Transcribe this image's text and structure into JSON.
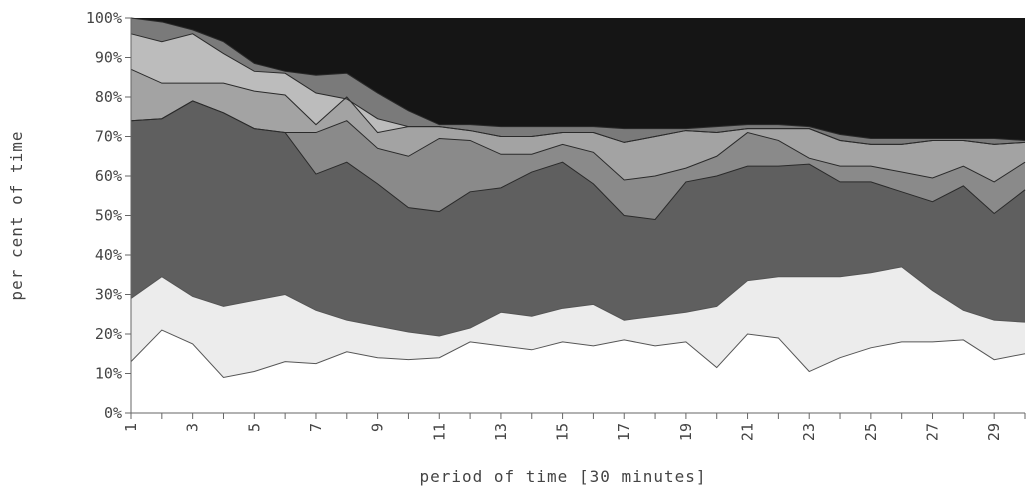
{
  "chart_data": {
    "type": "area",
    "stacked": true,
    "title": "",
    "xlabel": "period of time [30 minutes]",
    "ylabel": "per cent of time",
    "xlim": [
      1,
      30
    ],
    "ylim": [
      0,
      100
    ],
    "x_ticks": [
      "1",
      "3",
      "5",
      "7",
      "9",
      "11",
      "13",
      "15",
      "17",
      "19",
      "21",
      "23",
      "25",
      "27",
      "29"
    ],
    "y_ticks": [
      "0%",
      "10%",
      "20%",
      "30%",
      "40%",
      "50%",
      "60%",
      "70%",
      "80%",
      "90%",
      "100%"
    ],
    "x": [
      1,
      2,
      3,
      4,
      5,
      6,
      7,
      8,
      9,
      10,
      11,
      12,
      13,
      14,
      15,
      16,
      17,
      18,
      19,
      20,
      21,
      22,
      23,
      24,
      25,
      26,
      27,
      28,
      29,
      30
    ],
    "cumulative_boundaries": [
      [
        13,
        21,
        17.5,
        9,
        10.5,
        13,
        12.5,
        15.5,
        14,
        13.5,
        14,
        18,
        17,
        16,
        18,
        17,
        18.5,
        17,
        18,
        11.5,
        20,
        19,
        10.5,
        14,
        16.5,
        18,
        18,
        18.5,
        13.5,
        15
      ],
      [
        29,
        34.5,
        29.5,
        27,
        28.5,
        30,
        26,
        23.5,
        22,
        20.5,
        19.5,
        21.5,
        25.5,
        24.5,
        26.5,
        27.5,
        23.5,
        24.5,
        25.5,
        27,
        33.5,
        34.5,
        34.5,
        34.5,
        35.5,
        37,
        31,
        26,
        23.5,
        23
      ],
      [
        74,
        74.5,
        79,
        76,
        72,
        71,
        60.5,
        63.5,
        58,
        52,
        51,
        56,
        57,
        61,
        63.5,
        58,
        50,
        49,
        58.5,
        60,
        62.5,
        62.5,
        63,
        58.5,
        58.5,
        56,
        53.5,
        57.5,
        50.5,
        56.5
      ],
      [
        74,
        74.5,
        79,
        76,
        72,
        71,
        71,
        74,
        67,
        65,
        69.5,
        69,
        65.5,
        65.5,
        68,
        66,
        59,
        60,
        62,
        65,
        71,
        69,
        64.5,
        62.5,
        62.5,
        61,
        59.5,
        62.5,
        58.5,
        63.5
      ],
      [
        87,
        83.5,
        83.5,
        83.5,
        81.5,
        80.5,
        73,
        80,
        71,
        72.5,
        72.5,
        71.5,
        70,
        70,
        71,
        71,
        68.5,
        70,
        71.5,
        71,
        72,
        72,
        72,
        69,
        68,
        68,
        69,
        69,
        68,
        68.5
      ],
      [
        96,
        94,
        96,
        91,
        86.5,
        86,
        81,
        79.5,
        74.5,
        72.5,
        72.5,
        71.5,
        70,
        70,
        71,
        71,
        68.5,
        70,
        71.5,
        71,
        72,
        72,
        72,
        69,
        68,
        68,
        69,
        69,
        68,
        68.5
      ],
      [
        100,
        99,
        97,
        94,
        88.5,
        86.5,
        85.5,
        86,
        81,
        76.5,
        73,
        73,
        72.5,
        72.5,
        72.5,
        72.5,
        72,
        72,
        72,
        72.5,
        73,
        73,
        72.5,
        70.5,
        69.5,
        69.5,
        69.5,
        69.5,
        69.5,
        69
      ],
      [
        100,
        100,
        100,
        100,
        100,
        100,
        100,
        100,
        100,
        100,
        100,
        100,
        100,
        100,
        100,
        100,
        100,
        100,
        100,
        100,
        100,
        100,
        100,
        100,
        100,
        100,
        100,
        100,
        100,
        100
      ]
    ],
    "layer_colors": [
      "#ffffff",
      "#ececec",
      "#5f5f5f",
      "#8a8a8a",
      "#a3a3a3",
      "#bcbcbc",
      "#7a7a7a",
      "#151515"
    ],
    "legend": "none",
    "grid": false
  }
}
